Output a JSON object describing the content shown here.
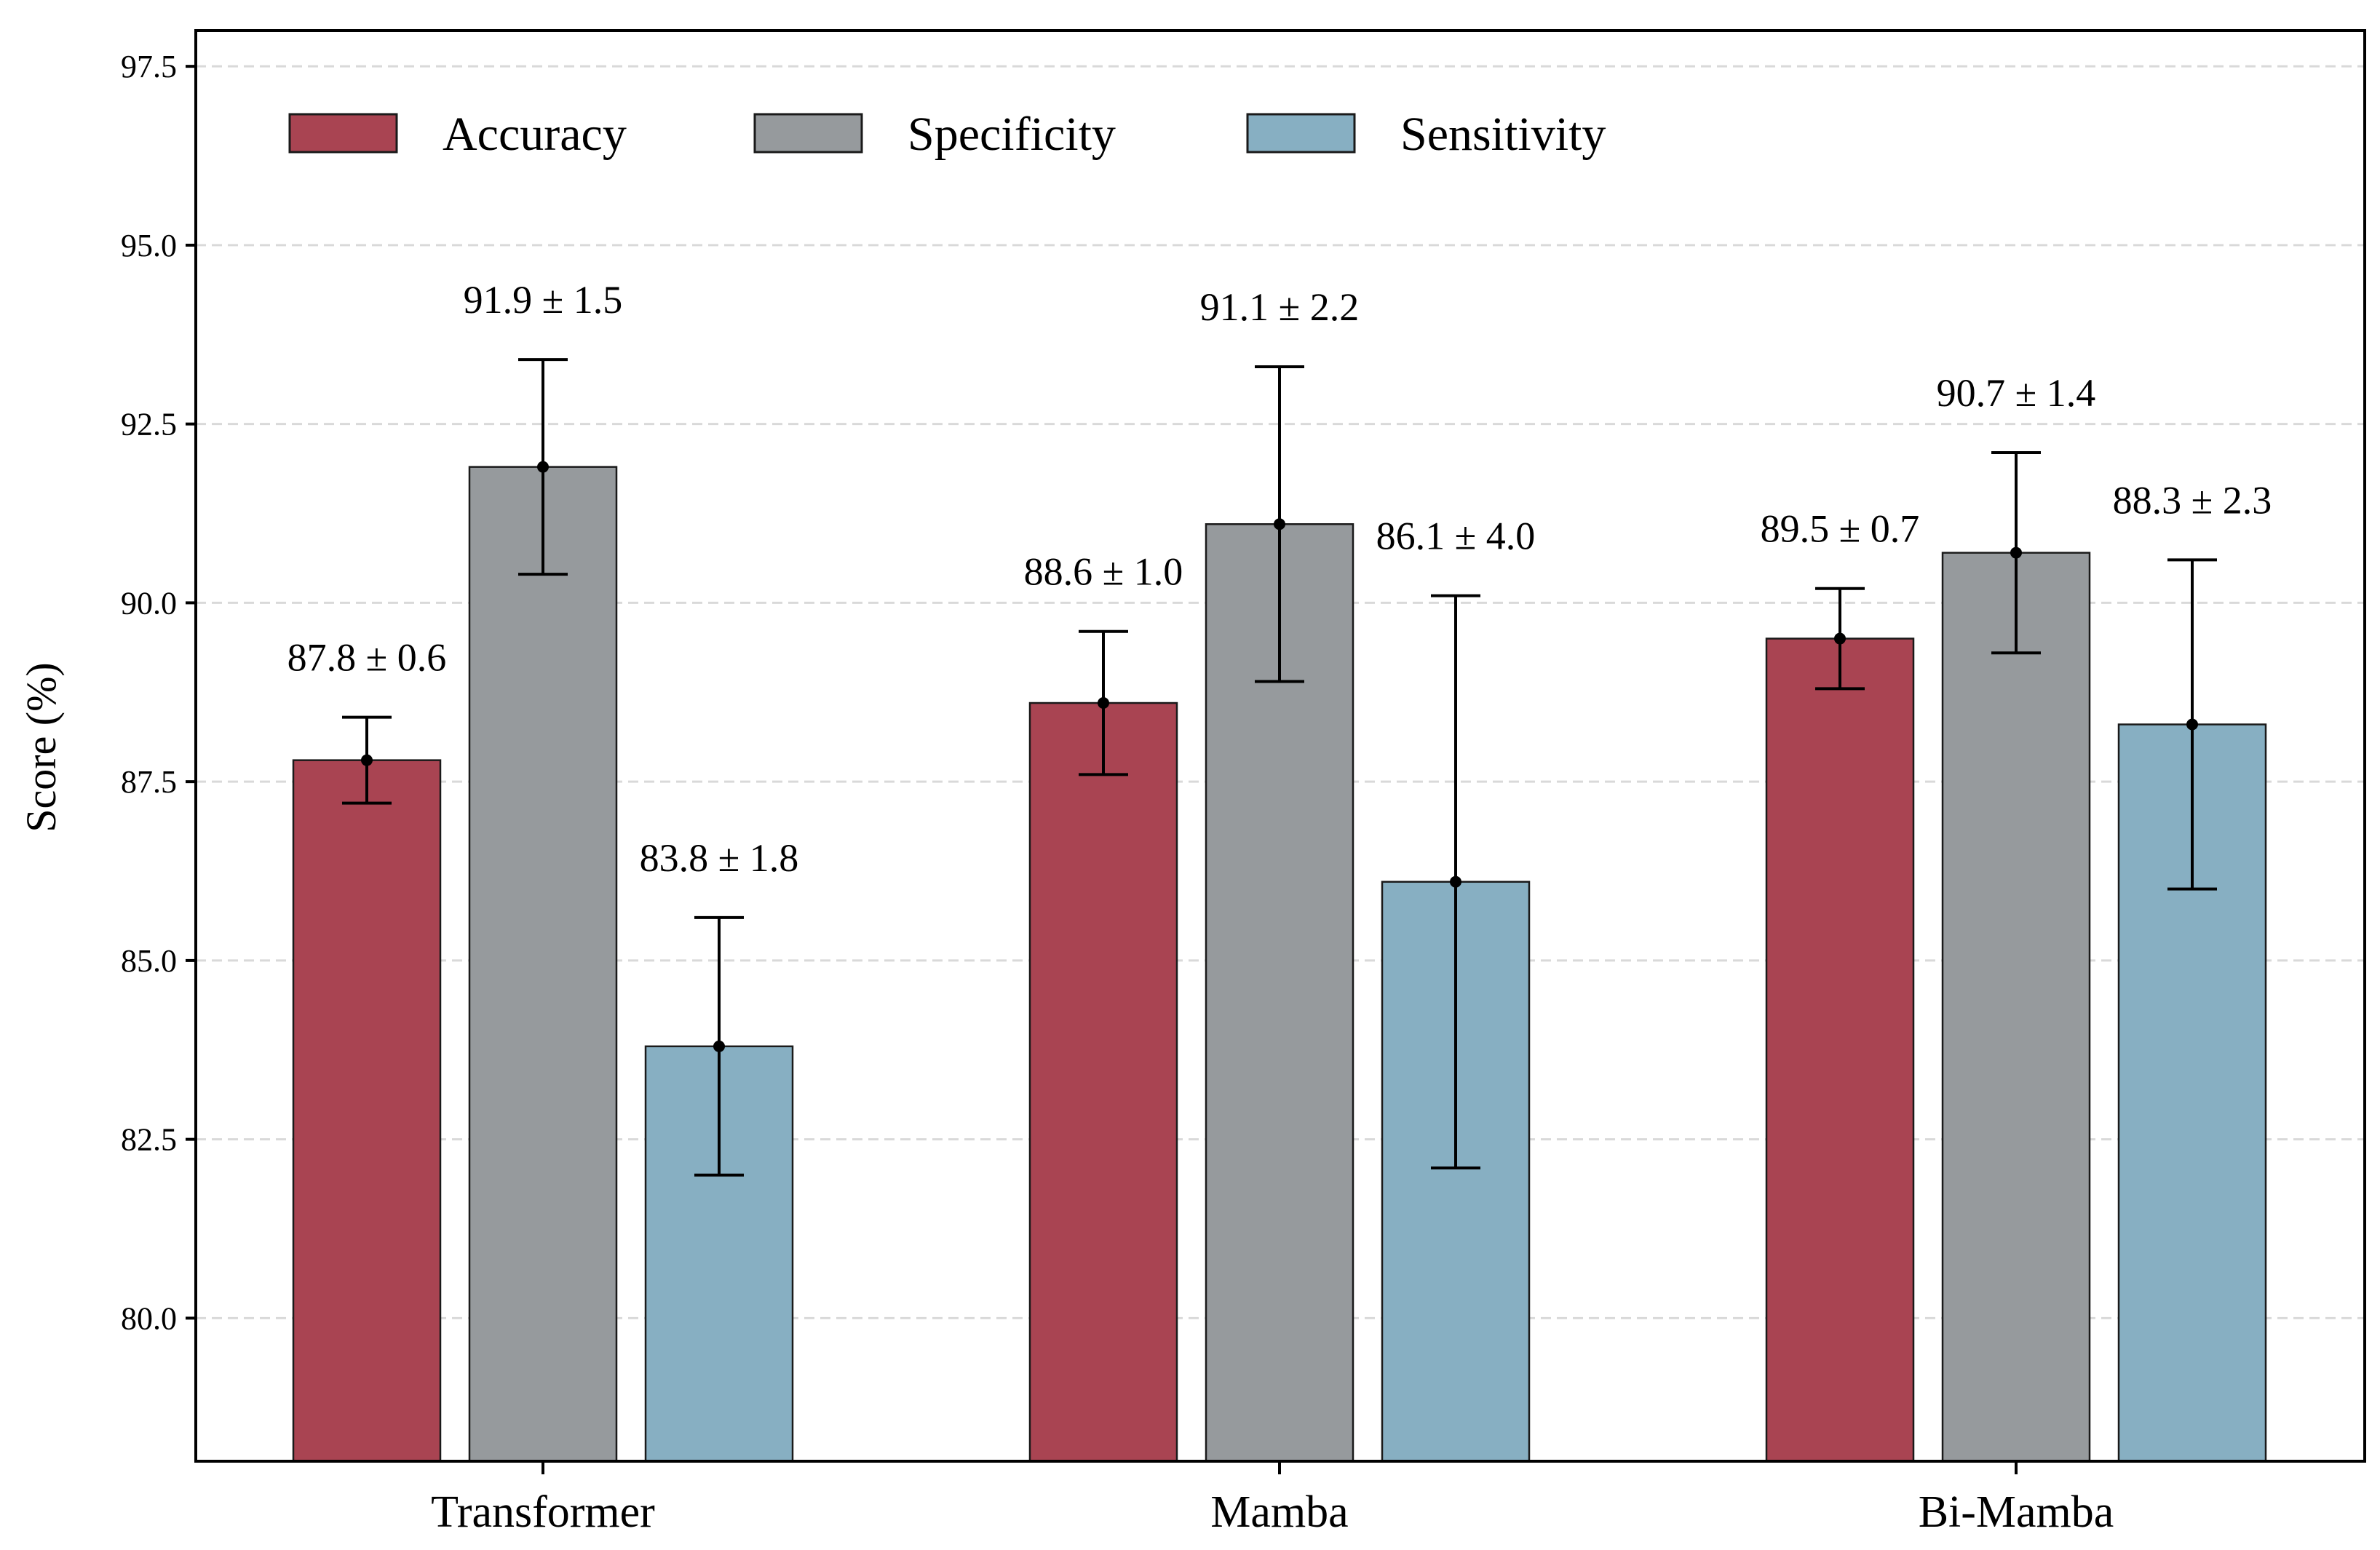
{
  "chart_data": {
    "type": "bar",
    "title": "",
    "xlabel": "",
    "ylabel": "Score (%)",
    "ylim": [
      78,
      98
    ],
    "yticks": [
      "80.0",
      "82.5",
      "85.0",
      "87.5",
      "90.0",
      "92.5",
      "95.0",
      "97.5"
    ],
    "grid": true,
    "legend_position": "top-left",
    "categories": [
      "Transformer",
      "Mamba",
      "Bi-Mamba"
    ],
    "series": [
      {
        "name": "Accuracy",
        "color": "#A94452",
        "values": [
          87.8,
          88.6,
          89.5
        ],
        "errors": [
          0.6,
          1.0,
          0.7
        ],
        "labels": [
          "87.8 ± 0.6",
          "88.6 ± 1.0",
          "89.5 ± 0.7"
        ]
      },
      {
        "name": "Specificity",
        "color": "#969A9D",
        "values": [
          91.9,
          91.1,
          90.7
        ],
        "errors": [
          1.5,
          2.2,
          1.4
        ],
        "labels": [
          "91.9 ± 1.5",
          "91.1 ± 2.2",
          "90.7 ± 1.4"
        ]
      },
      {
        "name": "Sensitivity",
        "color": "#87AFC2",
        "values": [
          83.8,
          86.1,
          88.3
        ],
        "errors": [
          1.8,
          4.0,
          2.3
        ],
        "labels": [
          "83.8 ± 1.8",
          "86.1 ± 4.0",
          "88.3 ± 2.3"
        ]
      }
    ]
  }
}
